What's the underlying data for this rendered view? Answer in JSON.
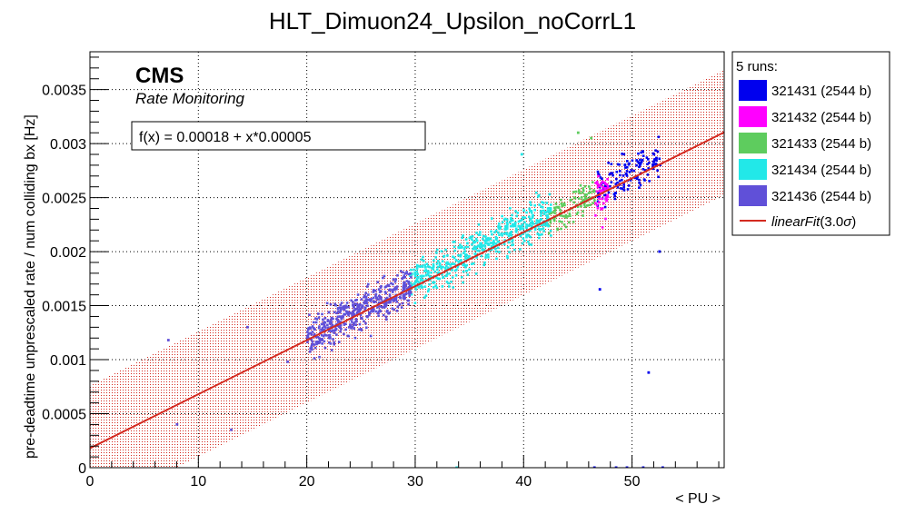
{
  "chart_data": {
    "type": "scatter",
    "title": "HLT_Dimuon24_Upsilon_noCorrL1",
    "xlabel": "< PU >",
    "ylabel": "pre-deadtime unprescaled rate / num colliding bx [Hz]",
    "xlim": [
      0,
      58.5
    ],
    "ylim": [
      0,
      0.00385
    ],
    "x_ticks": [
      0,
      10,
      20,
      30,
      40,
      50
    ],
    "y_ticks": [
      0,
      0.0005,
      0.001,
      0.0015,
      0.002,
      0.0025,
      0.003,
      0.0035
    ],
    "y_tick_labels": [
      "0",
      "0.0005",
      "0.001",
      "0.0015",
      "0.002",
      "0.0025",
      "0.003",
      "0.0035"
    ],
    "x_tick_labels": [
      "0",
      "10",
      "20",
      "30",
      "40",
      "50"
    ],
    "grid": true,
    "legend_position": "right-outside",
    "legend_header": "5 runs:",
    "cms_label": "CMS",
    "cms_sublabel": "Rate Monitoring",
    "fit_label": "f(x) = 0.00018 + x*0.00005",
    "fit": {
      "intercept": 0.00018,
      "slope": 5e-05,
      "name_prefix": "linearFit",
      "name_suffix": "(3.0",
      "name_sigma": "σ",
      "name_close": ")",
      "band_sigma": 3.0,
      "band_halfwidth": 0.00058,
      "color": "#d42a20"
    },
    "series": [
      {
        "name": "321431 (2544 b)",
        "color": "#0000ee",
        "x_range": [
          46.8,
          52.6
        ],
        "y_center": 0.00272,
        "y_spread": 0.00016,
        "count": 140,
        "outliers": [
          [
            47.0,
            0.00165
          ],
          [
            51.5,
            0.00088
          ],
          [
            52.5,
            0.002
          ],
          [
            46.5,
            0.0
          ],
          [
            48.5,
            0.0
          ],
          [
            49.5,
            0.0
          ],
          [
            51.0,
            0.0
          ],
          [
            52.8,
            0.0
          ]
        ]
      },
      {
        "name": "321432 (2544 b)",
        "color": "#ff00ff",
        "x_range": [
          46.6,
          47.8
        ],
        "y_center": 0.00255,
        "y_spread": 0.00018,
        "count": 45,
        "outliers": []
      },
      {
        "name": "321433 (2544 b)",
        "color": "#5ecc5e",
        "x_range": [
          42.3,
          46.6
        ],
        "y_center": 0.00242,
        "y_spread": 0.00014,
        "count": 110,
        "outliers": [
          [
            45.0,
            0.0031
          ],
          [
            46.2,
            0.00305
          ]
        ]
      },
      {
        "name": "321434 (2544 b)",
        "color": "#22e8e8",
        "x_range": [
          29.5,
          42.5
        ],
        "y_center": 0.00204,
        "y_spread": 0.00016,
        "count": 520,
        "outliers": [
          [
            39.8,
            0.0029
          ],
          [
            33.8,
            0.0
          ]
        ]
      },
      {
        "name": "321436 (2544 b)",
        "color": "#6050d8",
        "x_range": [
          20.0,
          29.6
        ],
        "y_center": 0.00145,
        "y_spread": 0.00015,
        "count": 480,
        "outliers": [
          [
            7.2,
            0.00118
          ],
          [
            8.0,
            0.0004
          ],
          [
            13.0,
            0.00035
          ],
          [
            14.5,
            0.0013
          ],
          [
            18.2,
            0.00098
          ]
        ]
      }
    ]
  }
}
